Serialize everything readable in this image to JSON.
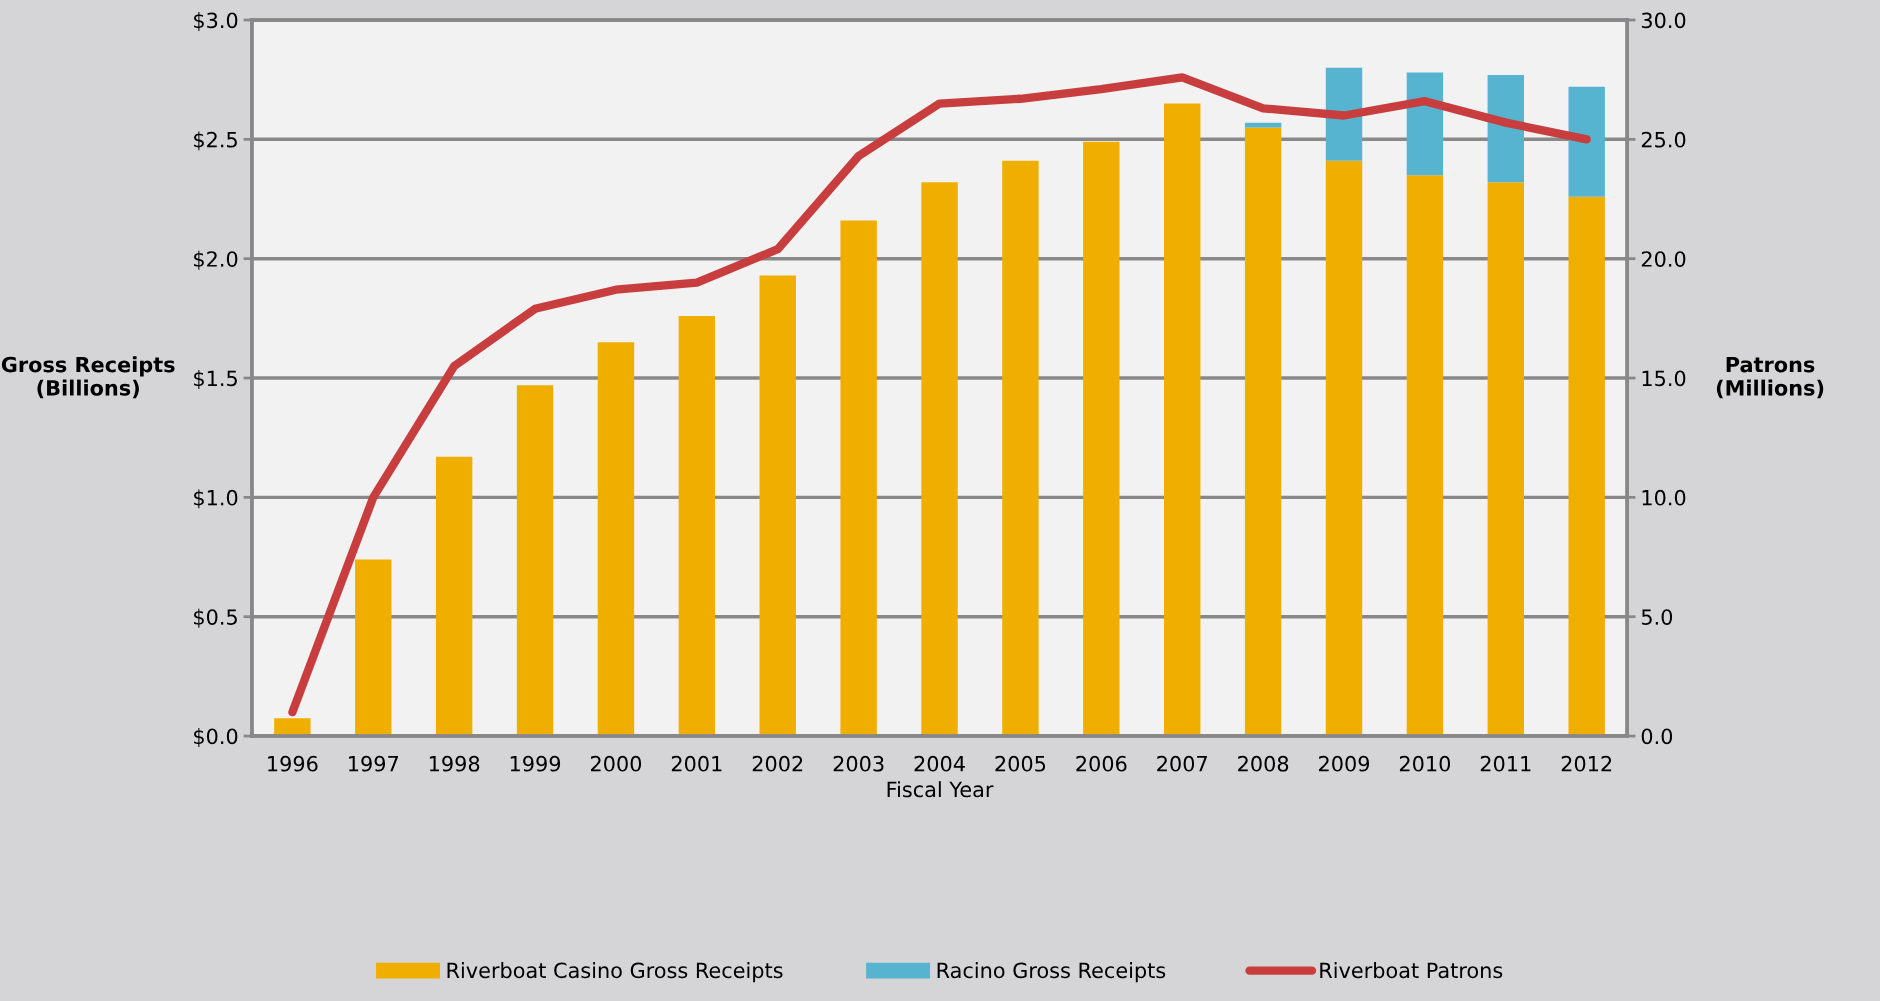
{
  "chart_data": {
    "type": "bar",
    "stacked": true,
    "xlabel": "Fiscal Year",
    "ylabel": "Gross Receipts\n(Billions)",
    "y2label": "Patrons\n(Millions)",
    "categories": [
      "1996",
      "1997",
      "1998",
      "1999",
      "2000",
      "2001",
      "2002",
      "2003",
      "2004",
      "2005",
      "2006",
      "2007",
      "2008",
      "2009",
      "2010",
      "2011",
      "2012"
    ],
    "series": [
      {
        "name": "Riverboat Casino Gross Receipts",
        "color": "#f0ae00",
        "values": [
          0.075,
          0.74,
          1.17,
          1.47,
          1.65,
          1.76,
          1.93,
          2.16,
          2.32,
          2.41,
          2.49,
          2.65,
          2.55,
          2.41,
          2.35,
          2.32,
          2.26
        ]
      },
      {
        "name": "Racino Gross Receipts",
        "color": "#56b4d0",
        "values": [
          null,
          null,
          null,
          null,
          null,
          null,
          null,
          null,
          null,
          null,
          null,
          null,
          0.02,
          0.39,
          0.43,
          0.45,
          0.46
        ]
      },
      {
        "name": "Riverboat Patrons",
        "type": "line",
        "axis": "y2",
        "color": "#c83e3e",
        "values": [
          1.0,
          10.0,
          15.5,
          17.9,
          18.7,
          19.0,
          20.4,
          24.3,
          26.5,
          26.7,
          27.1,
          27.6,
          26.3,
          26.0,
          26.6,
          25.7,
          25.0
        ]
      }
    ],
    "ylim": [
      0,
      3
    ],
    "yticks": [
      {
        "value": 0,
        "label": "$0.0"
      },
      {
        "value": 0.5,
        "label": "$0.5"
      },
      {
        "value": 1,
        "label": "$1.0"
      },
      {
        "value": 1.5,
        "label": "$1.5"
      },
      {
        "value": 2,
        "label": "$2.0"
      },
      {
        "value": 2.5,
        "label": "$2.5"
      },
      {
        "value": 3,
        "label": "$3.0"
      }
    ],
    "y2lim": [
      0,
      30
    ],
    "y2ticks": [
      {
        "value": 0,
        "label": "0.0"
      },
      {
        "value": 5,
        "label": "5.0"
      },
      {
        "value": 10,
        "label": "10.0"
      },
      {
        "value": 15,
        "label": "15.0"
      },
      {
        "value": 20,
        "label": "20.0"
      },
      {
        "value": 25,
        "label": "25.0"
      },
      {
        "value": 30,
        "label": "30.0"
      }
    ],
    "grid": "y",
    "legend": "bottom",
    "marker": "none",
    "line_style": "solid"
  }
}
